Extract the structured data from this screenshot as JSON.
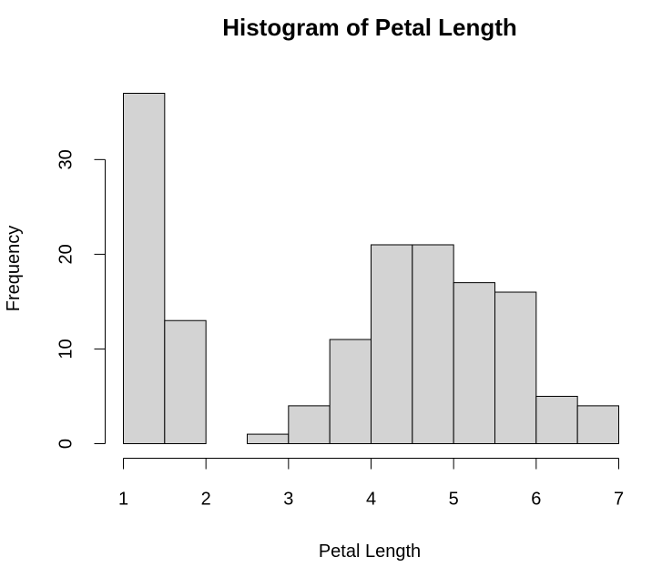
{
  "chart_data": {
    "type": "histogram",
    "title": "Histogram of Petal Length",
    "xlabel": "Petal Length",
    "ylabel": "Frequency",
    "bin_edges": [
      1,
      1.5,
      2,
      2.5,
      3,
      3.5,
      4,
      4.5,
      5,
      5.5,
      6,
      6.5,
      7
    ],
    "counts": [
      37,
      13,
      0,
      1,
      4,
      11,
      21,
      21,
      17,
      16,
      5,
      4
    ],
    "xlim": [
      1,
      7
    ],
    "ylim": [
      0,
      37
    ],
    "x_ticks": [
      1,
      2,
      3,
      4,
      5,
      6,
      7
    ],
    "y_ticks": [
      0,
      10,
      20,
      30
    ],
    "bar_color": "#d3d3d3",
    "edge_color": "#000000",
    "grid": false
  }
}
